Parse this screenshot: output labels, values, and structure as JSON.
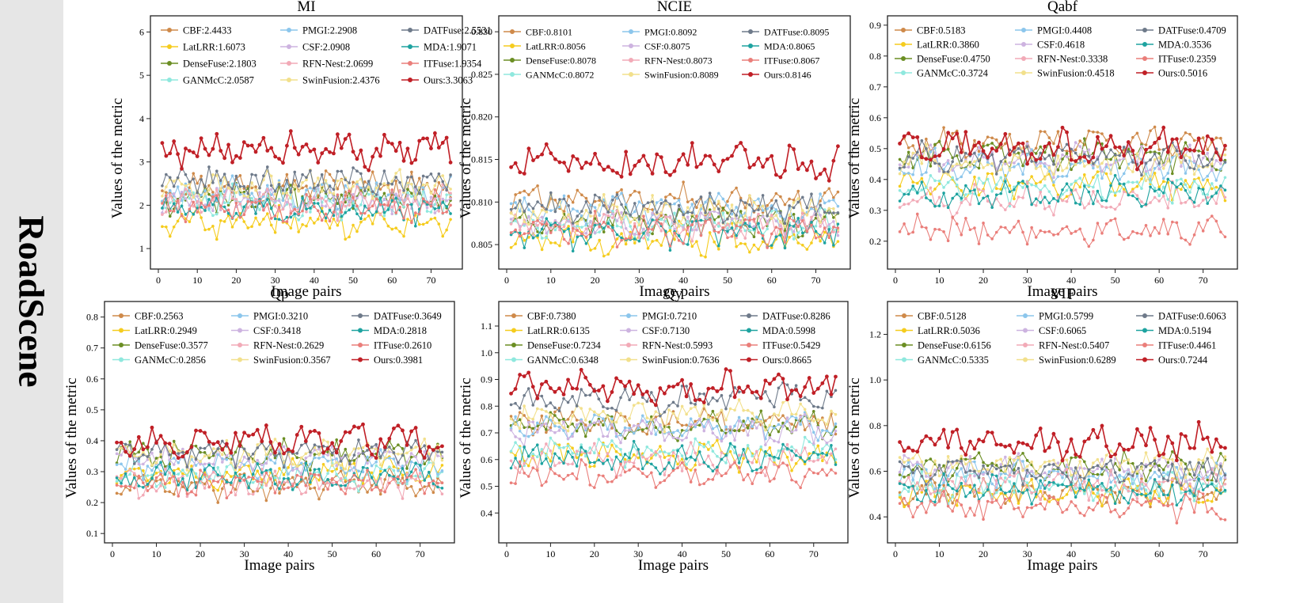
{
  "row_label": "RoadScene",
  "colors": {
    "CBF": "#cf8a4a",
    "LatLRR": "#f5cc1e",
    "DenseFuse": "#6b8e23",
    "GANMcC": "#8fe8de",
    "PMGI": "#8cc6ec",
    "CSF": "#cdb3e0",
    "RFN-Nest": "#f2aab7",
    "SwinFusion": "#f2e08c",
    "DATFuse": "#6e7a8a",
    "MDA": "#1ea3a0",
    "ITFuse": "#ea7e7a",
    "Ours": "#c01f26"
  },
  "chart_data": [
    {
      "type": "line",
      "title": "MI",
      "xlabel": "Image pairs",
      "ylabel": "Values of the metric",
      "xlim": [
        0,
        76
      ],
      "ylim": [
        0.6,
        6.3
      ],
      "yticks": [
        1,
        2,
        3,
        4,
        5,
        6
      ],
      "ytick_labels": [
        "1",
        "2",
        "3",
        "4",
        "5",
        "6"
      ],
      "xticks": [
        0,
        10,
        20,
        30,
        40,
        50,
        60,
        70
      ],
      "xtick_labels": [
        "0",
        "10",
        "20",
        "30",
        "40",
        "50",
        "60",
        "70"
      ],
      "legend_position": "top",
      "series": [
        {
          "name": "CBF",
          "value": "2.4433",
          "label": "CBF:2.4433"
        },
        {
          "name": "LatLRR",
          "value": "1.6073",
          "label": "LatLRR:1.6073"
        },
        {
          "name": "DenseFuse",
          "value": "2.1803",
          "label": "DenseFuse:2.1803"
        },
        {
          "name": "GANMcC",
          "value": "2.0587",
          "label": "GANMcC:2.0587"
        },
        {
          "name": "PMGI",
          "value": "2.2908",
          "label": "PMGI:2.2908"
        },
        {
          "name": "CSF",
          "value": "2.0908",
          "label": "CSF:2.0908"
        },
        {
          "name": "RFN-Nest",
          "value": "2.0699",
          "label": "RFN-Nest:2.0699"
        },
        {
          "name": "SwinFusion",
          "value": "2.4376",
          "label": "SwinFusion:2.4376"
        },
        {
          "name": "DATFuse",
          "value": "2.5531",
          "label": "DATFuse:2.5531"
        },
        {
          "name": "MDA",
          "value": "1.9071",
          "label": "MDA:1.9071"
        },
        {
          "name": "ITFuse",
          "value": "1.9354",
          "label": "ITFuse:1.9354"
        },
        {
          "name": "Ours",
          "value": "3.3063",
          "label": "Ours:3.3063"
        }
      ]
    },
    {
      "type": "line",
      "title": "NCIE",
      "xlabel": "Image pairs",
      "ylabel": "Values of the metric",
      "xlim": [
        0,
        76
      ],
      "ylim": [
        0.8025,
        0.8315
      ],
      "yticks": [
        0.805,
        0.81,
        0.815,
        0.82,
        0.825,
        0.83
      ],
      "ytick_labels": [
        "0.805",
        "0.810",
        "0.815",
        "0.820",
        "0.825",
        "0.830"
      ],
      "xticks": [
        0,
        10,
        20,
        30,
        40,
        50,
        60,
        70
      ],
      "xtick_labels": [
        "0",
        "10",
        "20",
        "30",
        "40",
        "50",
        "60",
        "70"
      ],
      "legend_position": "top",
      "series": [
        {
          "name": "CBF",
          "value": "0.8101",
          "label": "CBF:0.8101"
        },
        {
          "name": "LatLRR",
          "value": "0.8056",
          "label": "LatLRR:0.8056"
        },
        {
          "name": "DenseFuse",
          "value": "0.8078",
          "label": "DenseFuse:0.8078"
        },
        {
          "name": "GANMcC",
          "value": "0.8072",
          "label": "GANMcC:0.8072"
        },
        {
          "name": "PMGI",
          "value": "0.8092",
          "label": "PMGI:0.8092"
        },
        {
          "name": "CSF",
          "value": "0.8075",
          "label": "CSF:0.8075"
        },
        {
          "name": "RFN-Nest",
          "value": "0.8073",
          "label": "RFN-Nest:0.8073"
        },
        {
          "name": "SwinFusion",
          "value": "0.8089",
          "label": "SwinFusion:0.8089"
        },
        {
          "name": "DATFuse",
          "value": "0.8095",
          "label": "DATFuse:0.8095"
        },
        {
          "name": "MDA",
          "value": "0.8065",
          "label": "MDA:0.8065"
        },
        {
          "name": "ITFuse",
          "value": "0.8067",
          "label": "ITFuse:0.8067"
        },
        {
          "name": "Ours",
          "value": "0.8146",
          "label": "Ours:0.8146"
        }
      ]
    },
    {
      "type": "line",
      "title": "Qabf",
      "xlabel": "Image pairs",
      "ylabel": "Values of the metric",
      "xlim": [
        0,
        76
      ],
      "ylim": [
        0.12,
        0.92
      ],
      "yticks": [
        0.2,
        0.3,
        0.4,
        0.5,
        0.6,
        0.7,
        0.8,
        0.9
      ],
      "ytick_labels": [
        "0.2",
        "0.3",
        "0.4",
        "0.5",
        "0.6",
        "0.7",
        "0.8",
        "0.9"
      ],
      "xticks": [
        0,
        10,
        20,
        30,
        40,
        50,
        60,
        70
      ],
      "xtick_labels": [
        "0",
        "10",
        "20",
        "30",
        "40",
        "50",
        "60",
        "70"
      ],
      "legend_position": "top",
      "series": [
        {
          "name": "CBF",
          "value": "0.5183",
          "label": "CBF:0.5183"
        },
        {
          "name": "LatLRR",
          "value": "0.3860",
          "label": "LatLRR:0.3860"
        },
        {
          "name": "DenseFuse",
          "value": "0.4750",
          "label": "DenseFuse:0.4750"
        },
        {
          "name": "GANMcC",
          "value": "0.3724",
          "label": "GANMcC:0.3724"
        },
        {
          "name": "PMGI",
          "value": "0.4408",
          "label": "PMGI:0.4408"
        },
        {
          "name": "CSF",
          "value": "0.4618",
          "label": "CSF:0.4618"
        },
        {
          "name": "RFN-Nest",
          "value": "0.3338",
          "label": "RFN-Nest:0.3338"
        },
        {
          "name": "SwinFusion",
          "value": "0.4518",
          "label": "SwinFusion:0.4518"
        },
        {
          "name": "DATFuse",
          "value": "0.4709",
          "label": "DATFuse:0.4709"
        },
        {
          "name": "MDA",
          "value": "0.3536",
          "label": "MDA:0.3536"
        },
        {
          "name": "ITFuse",
          "value": "0.2359",
          "label": "ITFuse:0.2359"
        },
        {
          "name": "Ours",
          "value": "0.5016",
          "label": "Ours:0.5016"
        }
      ]
    },
    {
      "type": "line",
      "title": "Qp",
      "xlabel": "Image pairs",
      "ylabel": "Values of the metric",
      "xlim": [
        0,
        76
      ],
      "ylim": [
        0.08,
        0.84
      ],
      "yticks": [
        0.1,
        0.2,
        0.3,
        0.4,
        0.5,
        0.6,
        0.7,
        0.8
      ],
      "ytick_labels": [
        "0.1",
        "0.2",
        "0.3",
        "0.4",
        "0.5",
        "0.6",
        "0.7",
        "0.8"
      ],
      "xticks": [
        0,
        10,
        20,
        30,
        40,
        50,
        60,
        70
      ],
      "xtick_labels": [
        "0",
        "10",
        "20",
        "30",
        "40",
        "50",
        "60",
        "70"
      ],
      "legend_position": "top",
      "series": [
        {
          "name": "CBF",
          "value": "0.2563",
          "label": "CBF:0.2563"
        },
        {
          "name": "LatLRR",
          "value": "0.2949",
          "label": "LatLRR:0.2949"
        },
        {
          "name": "DenseFuse",
          "value": "0.3577",
          "label": "DenseFuse:0.3577"
        },
        {
          "name": "GANMcC",
          "value": "0.2856",
          "label": "GANMcC:0.2856"
        },
        {
          "name": "PMGI",
          "value": "0.3210",
          "label": "PMGI:0.3210"
        },
        {
          "name": "CSF",
          "value": "0.3418",
          "label": "CSF:0.3418"
        },
        {
          "name": "RFN-Nest",
          "value": "0.2629",
          "label": "RFN-Nest:0.2629"
        },
        {
          "name": "SwinFusion",
          "value": "0.3567",
          "label": "SwinFusion:0.3567"
        },
        {
          "name": "DATFuse",
          "value": "0.3649",
          "label": "DATFuse:0.3649"
        },
        {
          "name": "MDA",
          "value": "0.2818",
          "label": "MDA:0.2818"
        },
        {
          "name": "ITFuse",
          "value": "0.2610",
          "label": "ITFuse:0.2610"
        },
        {
          "name": "Ours",
          "value": "0.3981",
          "label": "Ours:0.3981"
        }
      ]
    },
    {
      "type": "line",
      "title": "Qy",
      "xlabel": "Image pairs",
      "ylabel": "Values of the metric",
      "xlim": [
        0,
        76
      ],
      "ylim": [
        0.3,
        1.18
      ],
      "yticks": [
        0.4,
        0.5,
        0.6,
        0.7,
        0.8,
        0.9,
        1.0,
        1.1
      ],
      "ytick_labels": [
        "0.4",
        "0.5",
        "0.6",
        "0.7",
        "0.8",
        "0.9",
        "1.0",
        "1.1"
      ],
      "xticks": [
        0,
        10,
        20,
        30,
        40,
        50,
        60,
        70
      ],
      "xtick_labels": [
        "0",
        "10",
        "20",
        "30",
        "40",
        "50",
        "60",
        "70"
      ],
      "legend_position": "top",
      "series": [
        {
          "name": "CBF",
          "value": "0.7380",
          "label": "CBF:0.7380"
        },
        {
          "name": "LatLRR",
          "value": "0.6135",
          "label": "LatLRR:0.6135"
        },
        {
          "name": "DenseFuse",
          "value": "0.7234",
          "label": "DenseFuse:0.7234"
        },
        {
          "name": "GANMcC",
          "value": "0.6348",
          "label": "GANMcC:0.6348"
        },
        {
          "name": "PMGI",
          "value": "0.7210",
          "label": "PMGI:0.7210"
        },
        {
          "name": "CSF",
          "value": "0.7130",
          "label": "CSF:0.7130"
        },
        {
          "name": "RFN-Nest",
          "value": "0.5993",
          "label": "RFN-Nest:0.5993"
        },
        {
          "name": "SwinFusion",
          "value": "0.7636",
          "label": "SwinFusion:0.7636"
        },
        {
          "name": "DATFuse",
          "value": "0.8286",
          "label": "DATFuse:0.8286"
        },
        {
          "name": "MDA",
          "value": "0.5998",
          "label": "MDA:0.5998"
        },
        {
          "name": "ITFuse",
          "value": "0.5429",
          "label": "ITFuse:0.5429"
        },
        {
          "name": "Ours",
          "value": "0.8665",
          "label": "Ours:0.8665"
        }
      ]
    },
    {
      "type": "line",
      "title": "VIF",
      "xlabel": "Image pairs",
      "ylabel": "Values of the metric",
      "xlim": [
        0,
        76
      ],
      "ylim": [
        0.3,
        1.33
      ],
      "yticks": [
        0.4,
        0.6,
        0.8,
        1.0,
        1.2
      ],
      "ytick_labels": [
        "0.4",
        "0.6",
        "0.8",
        "1.0",
        "1.2"
      ],
      "xticks": [
        0,
        10,
        20,
        30,
        40,
        50,
        60,
        70
      ],
      "xtick_labels": [
        "0",
        "10",
        "20",
        "30",
        "40",
        "50",
        "60",
        "70"
      ],
      "legend_position": "top",
      "series": [
        {
          "name": "CBF",
          "value": "0.5128",
          "label": "CBF:0.5128"
        },
        {
          "name": "LatLRR",
          "value": "0.5036",
          "label": "LatLRR:0.5036"
        },
        {
          "name": "DenseFuse",
          "value": "0.6156",
          "label": "DenseFuse:0.6156"
        },
        {
          "name": "GANMcC",
          "value": "0.5335",
          "label": "GANMcC:0.5335"
        },
        {
          "name": "PMGI",
          "value": "0.5799",
          "label": "PMGI:0.5799"
        },
        {
          "name": "CSF",
          "value": "0.6065",
          "label": "CSF:0.6065"
        },
        {
          "name": "RFN-Nest",
          "value": "0.5407",
          "label": "RFN-Nest:0.5407"
        },
        {
          "name": "SwinFusion",
          "value": "0.6289",
          "label": "SwinFusion:0.6289"
        },
        {
          "name": "DATFuse",
          "value": "0.6063",
          "label": "DATFuse:0.6063"
        },
        {
          "name": "MDA",
          "value": "0.5194",
          "label": "MDA:0.5194"
        },
        {
          "name": "ITFuse",
          "value": "0.4461",
          "label": "ITFuse:0.4461"
        },
        {
          "name": "Ours",
          "value": "0.7244",
          "label": "Ours:0.7244"
        }
      ]
    }
  ]
}
